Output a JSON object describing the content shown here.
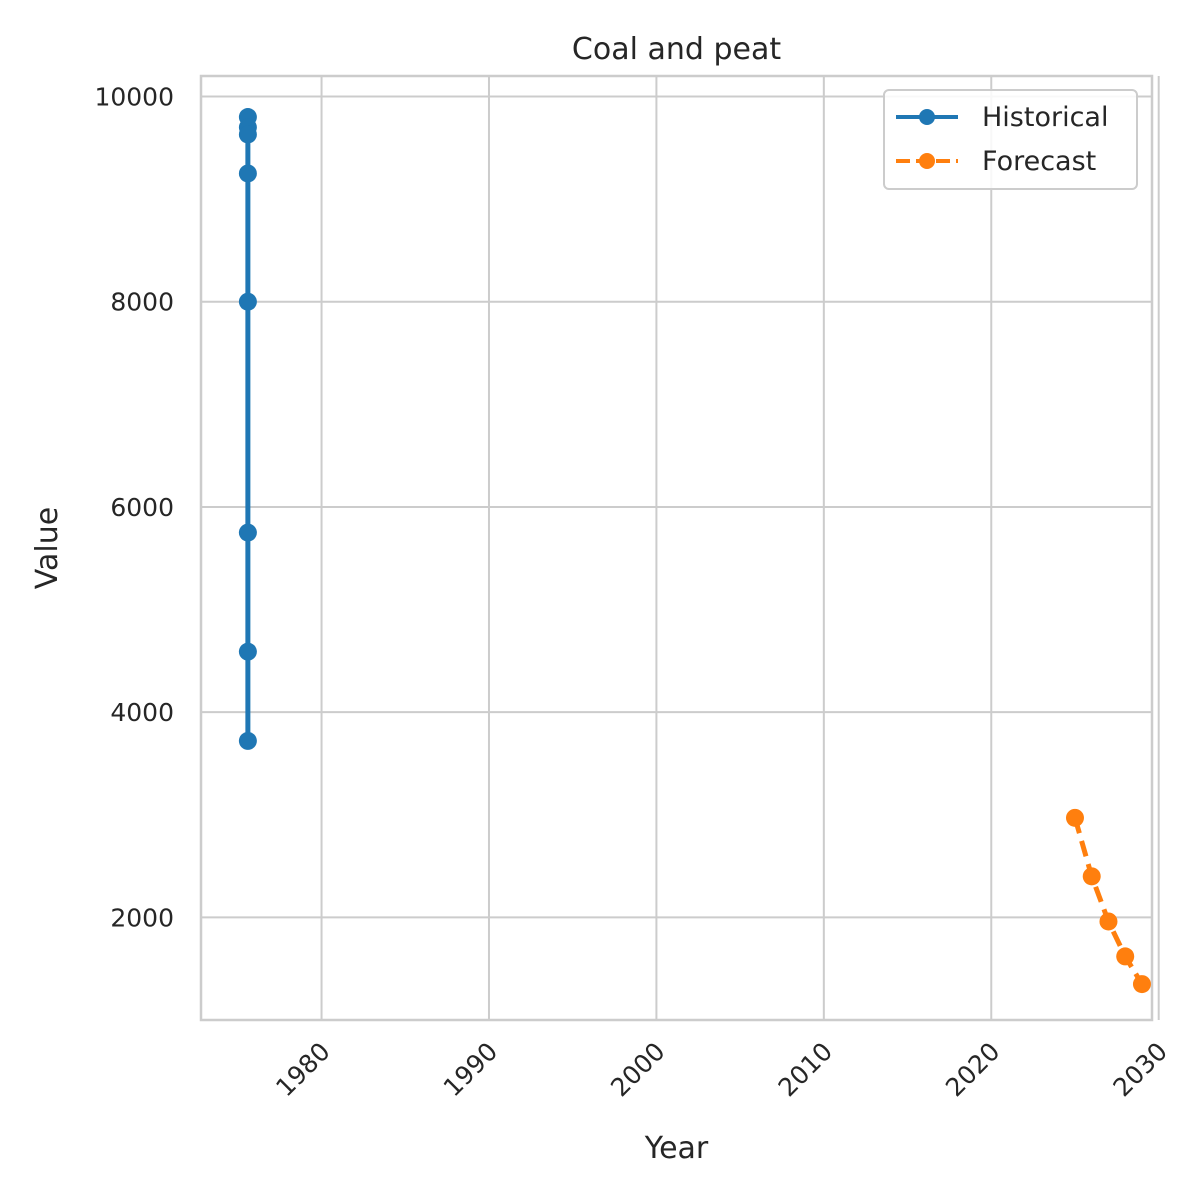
{
  "chart_data": {
    "type": "line",
    "title": "Coal and peat",
    "xlabel": "Year",
    "ylabel": "Value",
    "xlim": [
      1972.8,
      2029.6
    ],
    "ylim": [
      1000,
      10200
    ],
    "xticks": [
      1980,
      1990,
      2000,
      2010,
      2020,
      2030
    ],
    "yticks": [
      2000,
      4000,
      6000,
      8000,
      10000
    ],
    "grid": true,
    "legend_position": "top-right",
    "series": [
      {
        "name": "Historical",
        "color": "#1f77b4",
        "line_style": "solid",
        "marker": "circle",
        "x": [
          1975.6,
          1975.6,
          1975.6,
          1975.6,
          1975.6,
          1975.6,
          1975.6,
          1975.6
        ],
        "y": [
          9800,
          9700,
          9630,
          9250,
          8000,
          5750,
          4590,
          3720
        ]
      },
      {
        "name": "Forecast",
        "color": "#ff7f0e",
        "line_style": "dashed",
        "marker": "circle",
        "x": [
          2025,
          2026,
          2027,
          2028,
          2029
        ],
        "y": [
          2970,
          2400,
          1960,
          1620,
          1350
        ]
      }
    ]
  }
}
